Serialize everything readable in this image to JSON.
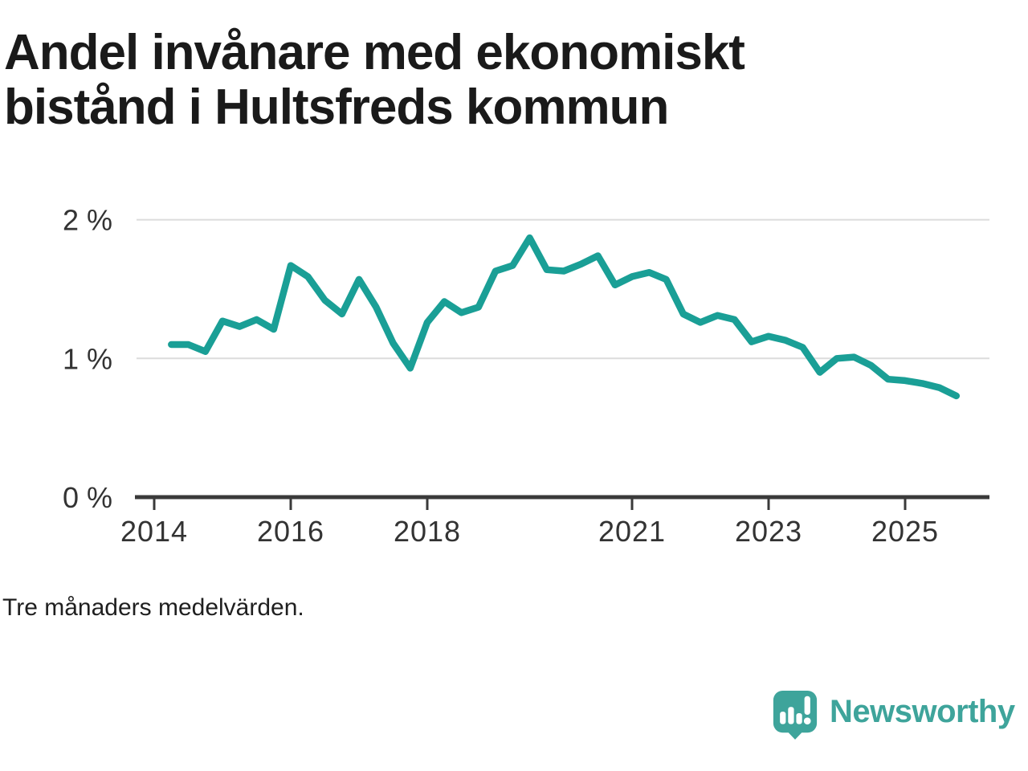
{
  "branding": {
    "wordmark": "Newsworthy",
    "logo_icon": "speech-bubble-bar-chart-exclamation-icon",
    "brand_color": "#3EA49B"
  },
  "colors": {
    "line": "#1A9F96",
    "grid": "#DCDCDC",
    "axis": "#3A3A3A",
    "title_text": "#1A1A1A"
  },
  "chart_data": {
    "type": "line",
    "title": "Andel invånare med ekonomiskt bistånd i Hultsfreds kommun",
    "note": "Tre månaders medelvärden.",
    "line_color": "#1A9F96",
    "grid": "horizontal",
    "legend": "none",
    "xlim": [
      2013.75,
      2026.25
    ],
    "ylim": [
      0,
      2.25
    ],
    "xticks": [
      2014,
      2016,
      2018,
      2021,
      2023,
      2025
    ],
    "xtick_labels": [
      "2014",
      "2016",
      "2018",
      "2021",
      "2023",
      "2025"
    ],
    "yticks": [
      0,
      1,
      2
    ],
    "ytick_labels": [
      "0 %",
      "1 %",
      "2 %"
    ],
    "x": [
      2014.25,
      2014.5,
      2014.75,
      2015,
      2015.25,
      2015.5,
      2015.75,
      2016,
      2016.25,
      2016.5,
      2016.75,
      2017,
      2017.25,
      2017.5,
      2017.75,
      2018,
      2018.25,
      2018.5,
      2018.75,
      2019,
      2019.25,
      2019.5,
      2019.75,
      2020,
      2020.25,
      2020.5,
      2020.75,
      2021,
      2021.25,
      2021.5,
      2021.75,
      2022,
      2022.25,
      2022.5,
      2022.75,
      2023,
      2023.25,
      2023.5,
      2023.75,
      2024,
      2024.25,
      2024.5,
      2024.75,
      2025,
      2025.25,
      2025.5,
      2025.75
    ],
    "values": [
      1.1,
      1.1,
      1.05,
      1.27,
      1.23,
      1.28,
      1.21,
      1.67,
      1.59,
      1.42,
      1.32,
      1.57,
      1.37,
      1.11,
      0.93,
      1.26,
      1.41,
      1.33,
      1.37,
      1.63,
      1.67,
      1.87,
      1.64,
      1.63,
      1.68,
      1.74,
      1.53,
      1.59,
      1.62,
      1.57,
      1.32,
      1.26,
      1.31,
      1.28,
      1.12,
      1.16,
      1.13,
      1.08,
      0.9,
      1.0,
      1.01,
      0.95,
      0.85,
      0.84,
      0.82,
      0.79,
      0.73
    ]
  }
}
